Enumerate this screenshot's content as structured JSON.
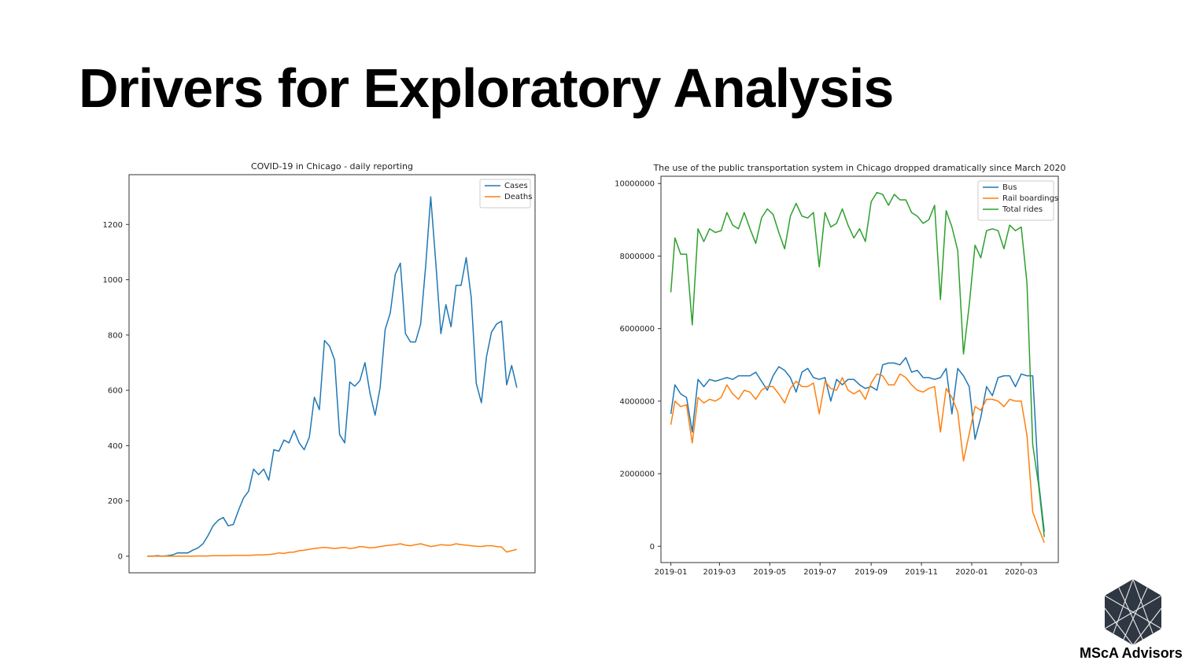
{
  "slide": {
    "title": "Drivers for Exploratory Analysis",
    "logo_label": "MScA Advisors",
    "logo_icon": "hexagon-lattice-icon"
  },
  "colors": {
    "blue": "#1f77b4",
    "orange": "#ff7f0e",
    "green": "#2ca02c",
    "logo": "#2f3742"
  },
  "chart_data": [
    {
      "type": "line",
      "title": "COVID-19 in Chicago - daily reporting",
      "xlabel": "",
      "ylabel": "",
      "ylim": [
        -60,
        1380
      ],
      "yticks": [
        0,
        200,
        400,
        600,
        800,
        1000,
        1200
      ],
      "grid": false,
      "legend": "top-right",
      "series": [
        {
          "name": "Cases",
          "color": "#1f77b4",
          "values": [
            0,
            0,
            2,
            0,
            2,
            5,
            12,
            12,
            12,
            22,
            30,
            45,
            75,
            110,
            130,
            140,
            110,
            115,
            165,
            210,
            235,
            315,
            295,
            315,
            275,
            385,
            380,
            420,
            410,
            455,
            410,
            385,
            430,
            575,
            530,
            780,
            760,
            710,
            440,
            410,
            630,
            615,
            635,
            700,
            590,
            510,
            610,
            820,
            880,
            1020,
            1060,
            805,
            775,
            775,
            840,
            1050,
            1300,
            1060,
            805,
            910,
            830,
            980,
            980,
            1080,
            935,
            625,
            555,
            720,
            810,
            840,
            850,
            620,
            690,
            610
          ]
        },
        {
          "name": "Deaths",
          "color": "#ff7f0e",
          "values": [
            0,
            0,
            0,
            0,
            0,
            0,
            0,
            0,
            0,
            0,
            1,
            1,
            1,
            2,
            2,
            2,
            2,
            3,
            3,
            3,
            3,
            4,
            5,
            5,
            6,
            8,
            12,
            10,
            14,
            15,
            20,
            22,
            25,
            28,
            30,
            32,
            30,
            28,
            30,
            32,
            28,
            30,
            35,
            33,
            30,
            32,
            35,
            38,
            40,
            42,
            45,
            40,
            38,
            42,
            45,
            40,
            35,
            38,
            42,
            40,
            40,
            45,
            42,
            40,
            38,
            36,
            35,
            38,
            38,
            35,
            33,
            15,
            20,
            25
          ]
        }
      ]
    },
    {
      "type": "line",
      "title": "The use of the public transportation system in Chicago dropped dramatically since March 2020",
      "xlabel": "",
      "ylabel": "",
      "xlim": [
        "2018-12-20",
        "2020-04-15"
      ],
      "ylim": [
        -450000,
        10200000
      ],
      "yticks": [
        0,
        2000000,
        4000000,
        6000000,
        8000000,
        10000000
      ],
      "xticks": [
        "2019-01",
        "2019-03",
        "2019-05",
        "2019-07",
        "2019-09",
        "2019-11",
        "2020-01",
        "2020-03"
      ],
      "grid": false,
      "legend": "top-right",
      "x": [
        "2019-01-01",
        "2019-01-06",
        "2019-01-13",
        "2019-01-20",
        "2019-01-27",
        "2019-02-03",
        "2019-02-10",
        "2019-02-17",
        "2019-02-24",
        "2019-03-03",
        "2019-03-10",
        "2019-03-17",
        "2019-03-24",
        "2019-03-31",
        "2019-04-07",
        "2019-04-14",
        "2019-04-21",
        "2019-04-28",
        "2019-05-05",
        "2019-05-12",
        "2019-05-19",
        "2019-05-26",
        "2019-06-02",
        "2019-06-09",
        "2019-06-16",
        "2019-06-23",
        "2019-06-30",
        "2019-07-07",
        "2019-07-14",
        "2019-07-21",
        "2019-07-28",
        "2019-08-04",
        "2019-08-11",
        "2019-08-18",
        "2019-08-25",
        "2019-09-01",
        "2019-09-08",
        "2019-09-15",
        "2019-09-22",
        "2019-09-29",
        "2019-10-06",
        "2019-10-13",
        "2019-10-20",
        "2019-10-27",
        "2019-11-03",
        "2019-11-10",
        "2019-11-17",
        "2019-11-24",
        "2019-12-01",
        "2019-12-08",
        "2019-12-15",
        "2019-12-22",
        "2019-12-29",
        "2020-01-05",
        "2020-01-12",
        "2020-01-19",
        "2020-01-26",
        "2020-02-02",
        "2020-02-09",
        "2020-02-16",
        "2020-02-23",
        "2020-03-01",
        "2020-03-08",
        "2020-03-15",
        "2020-03-22",
        "2020-03-29"
      ],
      "series": [
        {
          "name": "Bus",
          "color": "#1f77b4",
          "values": [
            3650000,
            4450000,
            4200000,
            4100000,
            3150000,
            4600000,
            4400000,
            4600000,
            4550000,
            4600000,
            4650000,
            4600000,
            4700000,
            4700000,
            4700000,
            4800000,
            4550000,
            4300000,
            4700000,
            4950000,
            4850000,
            4650000,
            4250000,
            4800000,
            4900000,
            4650000,
            4600000,
            4650000,
            4000000,
            4600000,
            4450000,
            4600000,
            4600000,
            4450000,
            4350000,
            4400000,
            4300000,
            5000000,
            5050000,
            5050000,
            5000000,
            5200000,
            4800000,
            4850000,
            4650000,
            4650000,
            4600000,
            4650000,
            4900000,
            3650000,
            4900000,
            4700000,
            4400000,
            2950000,
            3550000,
            4400000,
            4150000,
            4650000,
            4700000,
            4700000,
            4400000,
            4750000,
            4700000,
            4700000,
            1800000,
            400000
          ]
        },
        {
          "name": "Rail boardings",
          "color": "#ff7f0e",
          "values": [
            3350000,
            4000000,
            3850000,
            3900000,
            2850000,
            4100000,
            3950000,
            4050000,
            4000000,
            4100000,
            4450000,
            4200000,
            4050000,
            4300000,
            4250000,
            4050000,
            4300000,
            4400000,
            4400000,
            4200000,
            3950000,
            4350000,
            4550000,
            4400000,
            4400000,
            4500000,
            3650000,
            4550000,
            4350000,
            4300000,
            4650000,
            4300000,
            4200000,
            4300000,
            4050000,
            4500000,
            4750000,
            4700000,
            4450000,
            4450000,
            4750000,
            4650000,
            4450000,
            4300000,
            4250000,
            4350000,
            4400000,
            3150000,
            4350000,
            4100000,
            3700000,
            2350000,
            3100000,
            3850000,
            3750000,
            4050000,
            4050000,
            4000000,
            3850000,
            4050000,
            4000000,
            4000000,
            3050000,
            950000,
            500000,
            100000
          ]
        },
        {
          "name": "Total rides",
          "color": "#2ca02c",
          "values": [
            7000000,
            8500000,
            8050000,
            8050000,
            6100000,
            8750000,
            8400000,
            8750000,
            8650000,
            8700000,
            9200000,
            8850000,
            8750000,
            9200000,
            8750000,
            8350000,
            9050000,
            9300000,
            9150000,
            8650000,
            8200000,
            9100000,
            9450000,
            9100000,
            9050000,
            9200000,
            7700000,
            9200000,
            8800000,
            8900000,
            9300000,
            8850000,
            8500000,
            8750000,
            8400000,
            9500000,
            9750000,
            9700000,
            9400000,
            9700000,
            9550000,
            9550000,
            9200000,
            9100000,
            8900000,
            9000000,
            9400000,
            6800000,
            9250000,
            8800000,
            8150000,
            5300000,
            6650000,
            8300000,
            7950000,
            8700000,
            8750000,
            8700000,
            8200000,
            8850000,
            8700000,
            8800000,
            7250000,
            2800000,
            1700000,
            250000
          ]
        }
      ]
    }
  ]
}
